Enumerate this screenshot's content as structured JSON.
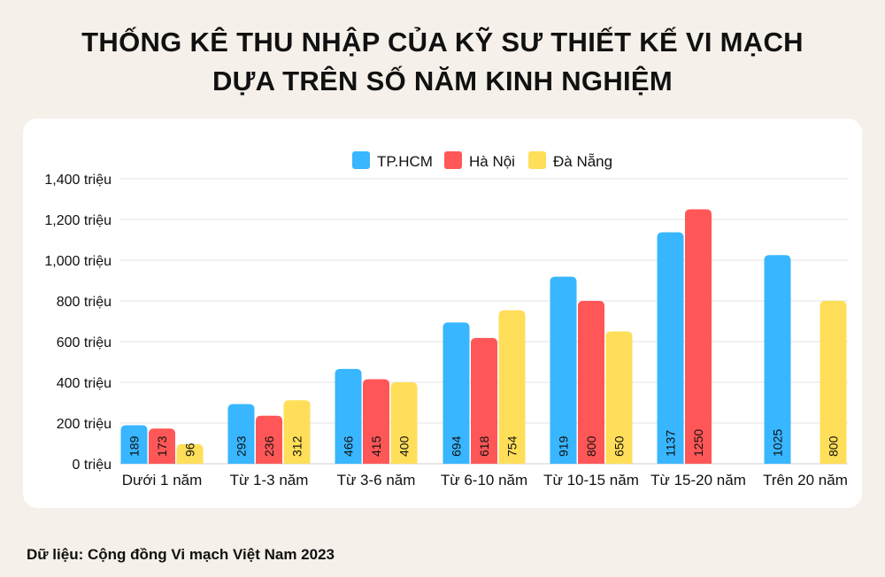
{
  "title_line1": "THỐNG KÊ THU NHẬP CỦA KỸ SƯ THIẾT KẾ VI MẠCH",
  "title_line2": "DỰA TRÊN SỐ NĂM KINH NGHIỆM",
  "source": "Dữ liệu: Cộng đồng Vi mạch Việt Nam 2023",
  "chart_data": {
    "type": "bar",
    "categories": [
      "Dưới 1 năm",
      "Từ 1-3 năm",
      "Từ 3-6 năm",
      "Từ 6-10 năm",
      "Từ 10-15 năm",
      "Từ 15-20 năm",
      "Trên 20 năm"
    ],
    "series": [
      {
        "name": "TP.HCM",
        "color": "#38b6ff",
        "values": [
          189,
          293,
          466,
          694,
          919,
          1137,
          1025
        ]
      },
      {
        "name": "Hà Nội",
        "color": "#ff5757",
        "values": [
          173,
          236,
          415,
          618,
          800,
          1250,
          null
        ]
      },
      {
        "name": "Đà Nẵng",
        "color": "#ffde59",
        "values": [
          96,
          312,
          400,
          754,
          650,
          null,
          800
        ]
      }
    ],
    "yticks": [
      "0 triệu",
      "200 triệu",
      "400 triệu",
      "600 triệu",
      "800 triệu",
      "1,000 triệu",
      "1,200 triệu",
      "1,400 triệu"
    ],
    "ylim": [
      0,
      1400
    ],
    "grid": true,
    "legend": "top-center"
  }
}
